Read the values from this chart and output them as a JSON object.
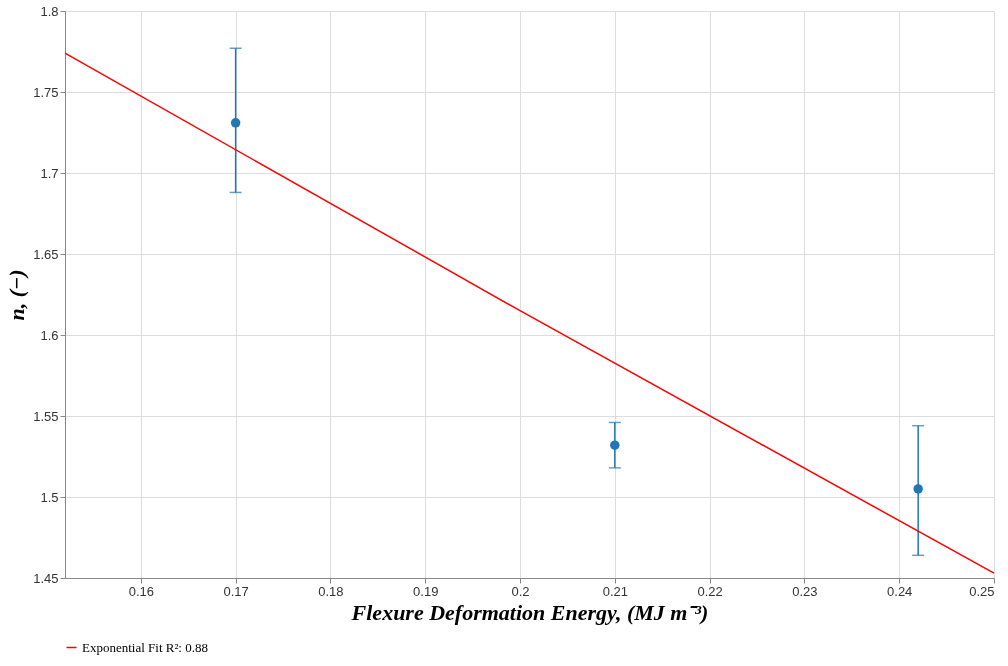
{
  "chart_data": {
    "type": "scatter",
    "xlabel": "Flexure Deformation Energy, (MJ m⁻³)",
    "ylabel": "n, (−)",
    "series": [
      {
        "color": "#1f77b4",
        "marker": "circle",
        "x": [
          0.17,
          0.21,
          0.242
        ],
        "values": [
          1.731,
          1.532,
          1.505
        ],
        "errors": [
          [
            1.688,
            1.777
          ],
          [
            1.518,
            1.546
          ],
          [
            1.464,
            1.544
          ]
        ]
      },
      {
        "type": "line",
        "name": "Exponential Fit R²: 0.88",
        "color": "#ff0000",
        "marker": "none",
        "line_style": "solid",
        "x": [
          0.152,
          0.2,
          0.25
        ],
        "values": [
          1.774,
          1.615,
          1.453
        ]
      }
    ],
    "xlim": [
      0.152,
      0.25
    ],
    "xticks": [
      0.16,
      0.17,
      0.18,
      0.19,
      0.2,
      0.21,
      0.22,
      0.23,
      0.24,
      0.25
    ],
    "ylim": [
      1.45,
      1.8
    ],
    "yticks": [
      1.45,
      1.5,
      1.55,
      1.6,
      1.65,
      1.7,
      1.75,
      1.8
    ],
    "grid": true,
    "legend": "bottom"
  }
}
